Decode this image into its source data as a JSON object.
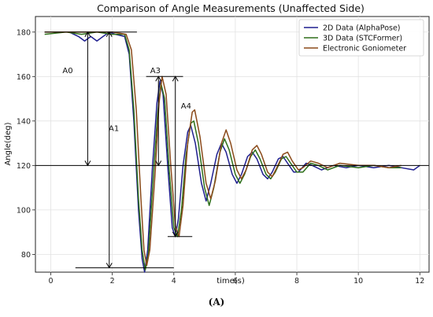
{
  "chart_data": {
    "type": "line",
    "title": "Comparison of Angle Measurements (Unaffected Side)",
    "xlabel": "time(s)",
    "ylabel": "Angle(deg)",
    "xlim": [
      -0.5,
      12.3
    ],
    "ylim": [
      72,
      187
    ],
    "xticks": [
      0,
      2,
      4,
      6,
      8,
      10,
      12
    ],
    "yticks": [
      80,
      100,
      120,
      140,
      160,
      180
    ],
    "grid": true,
    "legend_position": "top-right",
    "series": [
      {
        "name": "2D Data (AlphaPose)",
        "color": "#1f1f8f",
        "points": [
          [
            -0.2,
            180
          ],
          [
            0.6,
            180
          ],
          [
            0.9,
            178
          ],
          [
            1.1,
            176
          ],
          [
            1.3,
            178
          ],
          [
            1.5,
            176
          ],
          [
            1.7,
            178
          ],
          [
            1.9,
            180
          ],
          [
            2.1,
            179
          ],
          [
            2.4,
            178
          ],
          [
            2.55,
            170
          ],
          [
            2.7,
            140
          ],
          [
            2.85,
            100
          ],
          [
            2.97,
            78
          ],
          [
            3.05,
            72
          ],
          [
            3.15,
            82
          ],
          [
            3.3,
            118
          ],
          [
            3.45,
            148
          ],
          [
            3.55,
            158
          ],
          [
            3.65,
            152
          ],
          [
            3.8,
            120
          ],
          [
            3.95,
            92
          ],
          [
            4.05,
            88
          ],
          [
            4.15,
            96
          ],
          [
            4.3,
            120
          ],
          [
            4.45,
            135
          ],
          [
            4.55,
            138
          ],
          [
            4.7,
            130
          ],
          [
            4.9,
            112
          ],
          [
            5.05,
            104
          ],
          [
            5.2,
            112
          ],
          [
            5.4,
            125
          ],
          [
            5.55,
            130
          ],
          [
            5.7,
            126
          ],
          [
            5.9,
            116
          ],
          [
            6.05,
            112
          ],
          [
            6.2,
            116
          ],
          [
            6.4,
            124
          ],
          [
            6.55,
            126
          ],
          [
            6.7,
            123
          ],
          [
            6.9,
            116
          ],
          [
            7.05,
            114
          ],
          [
            7.2,
            117
          ],
          [
            7.4,
            123
          ],
          [
            7.55,
            124
          ],
          [
            7.7,
            121
          ],
          [
            7.9,
            117
          ],
          [
            8.05,
            117
          ],
          [
            8.3,
            121
          ],
          [
            8.5,
            120
          ],
          [
            8.8,
            118
          ],
          [
            9.2,
            120
          ],
          [
            9.6,
            119
          ],
          [
            10,
            120
          ],
          [
            10.5,
            119
          ],
          [
            11,
            120
          ],
          [
            11.4,
            119
          ],
          [
            11.8,
            118
          ],
          [
            12,
            120
          ]
        ]
      },
      {
        "name": "3D Data (STCFormer)",
        "color": "#2e6f1a",
        "points": [
          [
            -0.2,
            179
          ],
          [
            0.5,
            180
          ],
          [
            1.0,
            179
          ],
          [
            1.5,
            180
          ],
          [
            2.0,
            179
          ],
          [
            2.4,
            179
          ],
          [
            2.55,
            172
          ],
          [
            2.7,
            145
          ],
          [
            2.85,
            105
          ],
          [
            2.97,
            82
          ],
          [
            3.07,
            73
          ],
          [
            3.17,
            80
          ],
          [
            3.32,
            112
          ],
          [
            3.47,
            143
          ],
          [
            3.58,
            157
          ],
          [
            3.7,
            150
          ],
          [
            3.85,
            118
          ],
          [
            4.0,
            92
          ],
          [
            4.12,
            88
          ],
          [
            4.25,
            100
          ],
          [
            4.4,
            125
          ],
          [
            4.55,
            139
          ],
          [
            4.65,
            140
          ],
          [
            4.8,
            130
          ],
          [
            5.0,
            110
          ],
          [
            5.15,
            102
          ],
          [
            5.3,
            110
          ],
          [
            5.5,
            126
          ],
          [
            5.65,
            132
          ],
          [
            5.8,
            127
          ],
          [
            6.0,
            116
          ],
          [
            6.15,
            112
          ],
          [
            6.3,
            116
          ],
          [
            6.5,
            124
          ],
          [
            6.65,
            127
          ],
          [
            6.8,
            123
          ],
          [
            7.0,
            116
          ],
          [
            7.15,
            114
          ],
          [
            7.3,
            117
          ],
          [
            7.5,
            123
          ],
          [
            7.65,
            124
          ],
          [
            7.8,
            121
          ],
          [
            8.0,
            117
          ],
          [
            8.2,
            117
          ],
          [
            8.45,
            121
          ],
          [
            8.7,
            120
          ],
          [
            9.0,
            118
          ],
          [
            9.4,
            120
          ],
          [
            10,
            119
          ],
          [
            10.5,
            120
          ],
          [
            11,
            119
          ],
          [
            11.4,
            119
          ]
        ]
      },
      {
        "name": "Electronic Goniometer",
        "color": "#8b4a1a",
        "points": [
          [
            -0.2,
            180
          ],
          [
            0.5,
            180
          ],
          [
            1.0,
            180
          ],
          [
            1.5,
            180
          ],
          [
            2.0,
            180
          ],
          [
            2.45,
            179
          ],
          [
            2.62,
            172
          ],
          [
            2.78,
            145
          ],
          [
            2.93,
            105
          ],
          [
            3.03,
            82
          ],
          [
            3.12,
            75
          ],
          [
            3.22,
            82
          ],
          [
            3.4,
            118
          ],
          [
            3.52,
            148
          ],
          [
            3.62,
            160
          ],
          [
            3.75,
            152
          ],
          [
            3.9,
            120
          ],
          [
            4.05,
            93
          ],
          [
            4.17,
            88
          ],
          [
            4.3,
            102
          ],
          [
            4.45,
            130
          ],
          [
            4.6,
            144
          ],
          [
            4.68,
            145
          ],
          [
            4.85,
            133
          ],
          [
            5.05,
            112
          ],
          [
            5.2,
            105
          ],
          [
            5.35,
            113
          ],
          [
            5.55,
            130
          ],
          [
            5.7,
            136
          ],
          [
            5.85,
            130
          ],
          [
            6.05,
            118
          ],
          [
            6.2,
            114
          ],
          [
            6.35,
            118
          ],
          [
            6.55,
            127
          ],
          [
            6.7,
            129
          ],
          [
            6.85,
            125
          ],
          [
            7.05,
            117
          ],
          [
            7.2,
            115
          ],
          [
            7.35,
            119
          ],
          [
            7.55,
            125
          ],
          [
            7.7,
            126
          ],
          [
            7.85,
            122
          ],
          [
            8.05,
            118
          ],
          [
            8.2,
            119
          ],
          [
            8.45,
            122
          ],
          [
            8.7,
            121
          ],
          [
            9.0,
            119
          ],
          [
            9.4,
            121
          ],
          [
            10,
            120
          ],
          [
            10.5,
            120
          ],
          [
            11,
            119
          ],
          [
            11.4,
            120
          ]
        ]
      }
    ],
    "reference_lines": [
      {
        "y": 180,
        "x0": -0.2,
        "x1": 2.8
      },
      {
        "y": 120,
        "x0": -0.5,
        "x1": 12.3
      },
      {
        "y": 74,
        "x0": 0.8,
        "x1": 4.0
      },
      {
        "y": 160,
        "x0": 3.1,
        "x1": 4.3
      },
      {
        "y": 88,
        "x0": 3.8,
        "x1": 4.6
      }
    ],
    "annotations": [
      {
        "label": "A0",
        "x": 1.2,
        "y_from": 180,
        "y_to": 120,
        "text_x": 0.55,
        "text_y": 163
      },
      {
        "label": "A1",
        "x": 1.9,
        "y_from": 180,
        "y_to": 74,
        "text_x": 2.05,
        "text_y": 137
      },
      {
        "label": "A3",
        "x": 3.5,
        "y_from": 160,
        "y_to": 120,
        "text_x": 3.4,
        "text_y": 163
      },
      {
        "label": "A4",
        "x": 4.05,
        "y_from": 160,
        "y_to": 88,
        "text_x": 4.4,
        "text_y": 147
      }
    ]
  },
  "caption": "(A)"
}
